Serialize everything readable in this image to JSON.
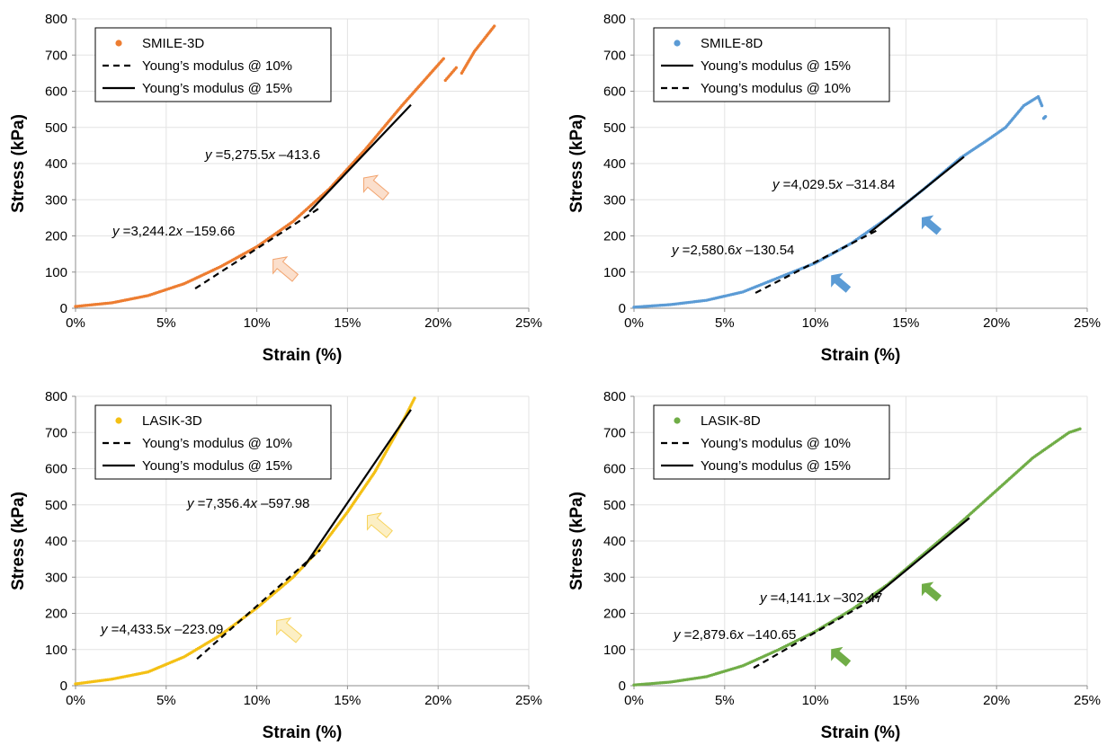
{
  "chart_data": [
    {
      "type": "scatter",
      "color": "#ED7D31",
      "xlabel": "Strain (%)",
      "ylabel": "Stress (kPa)",
      "xlim": [
        0,
        25
      ],
      "ylim": [
        0,
        800
      ],
      "xticks": [
        "0%",
        "5%",
        "10%",
        "15%",
        "20%",
        "25%"
      ],
      "yticks": [
        "0",
        "100",
        "200",
        "300",
        "400",
        "500",
        "600",
        "700",
        "800"
      ],
      "grid": true,
      "legend_position": "top-left",
      "legend": [
        {
          "label": "SMILE-3D",
          "kind": "marker"
        },
        {
          "label": "Young’s modulus @ 10%",
          "kind": "dashed"
        },
        {
          "label": "Young’s modulus @ 15%",
          "kind": "solid"
        }
      ],
      "series": [
        {
          "name": "SMILE-3D",
          "x": [
            0,
            2,
            4,
            6,
            8,
            10,
            12,
            14,
            16,
            18,
            20.3
          ],
          "y": [
            5,
            15,
            35,
            68,
            115,
            170,
            240,
            330,
            440,
            560,
            690
          ]
        },
        {
          "name": "SMILE-3D",
          "x": [
            20.4,
            21.0
          ],
          "y": [
            630,
            665
          ]
        },
        {
          "name": "SMILE-3D",
          "x": [
            21.3,
            22.0,
            23.1
          ],
          "y": [
            650,
            710,
            780
          ]
        }
      ],
      "fit_lines": [
        {
          "label": "Young’s modulus @ 10%",
          "style": "dashed",
          "slope": 3244.2,
          "intercept": -159.66,
          "x_range": [
            6.6,
            13.5
          ]
        },
        {
          "label": "Young’s modulus @ 15%",
          "style": "solid",
          "slope": 5275.5,
          "intercept": -413.6,
          "x_range": [
            12.9,
            18.5
          ]
        }
      ],
      "annotations": [
        {
          "text": "3,244.2",
          "intercept_text": "–159.66",
          "at": [
            10.4,
            130
          ],
          "arrow_at": [
            10.5,
            155
          ]
        },
        {
          "text": "5,275.5",
          "intercept_text": "–413.6",
          "at": [
            15.4,
            390
          ],
          "arrow_at": [
            15.5,
            380
          ]
        }
      ]
    },
    {
      "type": "scatter",
      "color": "#5B9BD5",
      "xlabel": "Strain (%)",
      "ylabel": "Stress (kPa)",
      "xlim": [
        0,
        25
      ],
      "ylim": [
        0,
        800
      ],
      "xticks": [
        "0%",
        "5%",
        "10%",
        "15%",
        "20%",
        "25%"
      ],
      "yticks": [
        "0",
        "100",
        "200",
        "300",
        "400",
        "500",
        "600",
        "700",
        "800"
      ],
      "grid": true,
      "legend_position": "top-left",
      "legend": [
        {
          "label": "SMILE-8D",
          "kind": "marker"
        },
        {
          "label": "Young’s modulus @ 15%",
          "kind": "solid"
        },
        {
          "label": "Young’s modulus @ 10%",
          "kind": "dashed"
        }
      ],
      "series": [
        {
          "name": "SMILE-8D",
          "x": [
            0,
            2,
            4,
            6,
            8,
            10,
            12,
            14,
            16,
            18,
            19.5,
            20.5,
            21.5,
            22.3,
            22.5
          ],
          "y": [
            3,
            10,
            22,
            45,
            85,
            125,
            180,
            250,
            330,
            415,
            465,
            500,
            560,
            585,
            560
          ]
        },
        {
          "name": "SMILE-8D",
          "x": [
            22.6,
            22.7
          ],
          "y": [
            525,
            530
          ]
        }
      ],
      "fit_lines": [
        {
          "label": "Young’s modulus @ 10%",
          "style": "dashed",
          "slope": 2580.6,
          "intercept": -130.54,
          "x_range": [
            6.7,
            13.5
          ]
        },
        {
          "label": "Young’s modulus @ 15%",
          "style": "solid",
          "slope": 4029.5,
          "intercept": -314.84,
          "x_range": [
            13.0,
            18.2
          ]
        }
      ],
      "annotations": [
        {
          "text": "2,580.6",
          "intercept_text": "–130.54",
          "at": [
            10.4,
            120
          ],
          "arrow_at": [
            10.5,
            110
          ]
        },
        {
          "text": "4,029.5",
          "intercept_text": "–314.84",
          "at": [
            15.4,
            280
          ],
          "arrow_at": [
            15.5,
            270
          ]
        }
      ]
    },
    {
      "type": "scatter",
      "color": "#F4C014",
      "xlabel": "Strain (%)",
      "ylabel": "Stress (kPa)",
      "xlim": [
        0,
        25
      ],
      "ylim": [
        0,
        800
      ],
      "xticks": [
        "0%",
        "5%",
        "10%",
        "15%",
        "20%",
        "25%"
      ],
      "yticks": [
        "0",
        "100",
        "200",
        "300",
        "400",
        "500",
        "600",
        "700",
        "800"
      ],
      "grid": true,
      "legend_position": "top-left",
      "legend": [
        {
          "label": "LASIK-3D",
          "kind": "marker"
        },
        {
          "label": "Young’s modulus @ 10%",
          "kind": "dashed"
        },
        {
          "label": "Young’s modulus @ 15%",
          "kind": "solid"
        }
      ],
      "series": [
        {
          "name": "LASIK-3D",
          "x": [
            0,
            2,
            4,
            6,
            8,
            10,
            12,
            13.5,
            15,
            16.5,
            17.5,
            18.2,
            18.7
          ],
          "y": [
            5,
            18,
            38,
            80,
            140,
            215,
            300,
            380,
            480,
            590,
            680,
            745,
            795
          ]
        }
      ],
      "fit_lines": [
        {
          "label": "Young’s modulus @ 10%",
          "style": "dashed",
          "slope": 4433.5,
          "intercept": -223.09,
          "x_range": [
            6.7,
            13.5
          ]
        },
        {
          "label": "Young’s modulus @ 15%",
          "style": "solid",
          "slope": 7356.4,
          "intercept": -597.98,
          "x_range": [
            12.6,
            18.5
          ]
        }
      ],
      "annotations": [
        {
          "text": "4,433.5",
          "intercept_text": "–223.09",
          "at": [
            10.6,
            200
          ],
          "arrow_at": [
            10.7,
            200
          ]
        },
        {
          "text": "7,356.4",
          "intercept_text": "–597.98",
          "at": [
            15.6,
            480
          ],
          "arrow_at": [
            15.7,
            490
          ]
        }
      ]
    },
    {
      "type": "scatter",
      "color": "#70AD47",
      "xlabel": "Strain (%)",
      "ylabel": "Stress (kPa)",
      "xlim": [
        0,
        25
      ],
      "ylim": [
        0,
        800
      ],
      "xticks": [
        "0%",
        "5%",
        "10%",
        "15%",
        "20%",
        "25%"
      ],
      "yticks": [
        "0",
        "100",
        "200",
        "300",
        "400",
        "500",
        "600",
        "700",
        "800"
      ],
      "grid": true,
      "legend_position": "top-left",
      "legend": [
        {
          "label": "LASIK-8D",
          "kind": "marker"
        },
        {
          "label": "Young’s modulus @ 10%",
          "kind": "dashed"
        },
        {
          "label": "Young’s modulus @ 15%",
          "kind": "solid"
        }
      ],
      "series": [
        {
          "name": "LASIK-8D",
          "x": [
            0,
            2,
            4,
            6,
            8,
            10,
            12,
            14,
            16,
            18,
            20,
            22,
            24,
            24.6
          ],
          "y": [
            2,
            10,
            25,
            55,
            100,
            150,
            210,
            280,
            365,
            450,
            540,
            630,
            700,
            710
          ]
        }
      ],
      "fit_lines": [
        {
          "label": "Young’s modulus @ 10%",
          "style": "dashed",
          "slope": 2879.6,
          "intercept": -140.65,
          "x_range": [
            6.6,
            13.5
          ]
        },
        {
          "label": "Young’s modulus @ 15%",
          "style": "solid",
          "slope": 4141.1,
          "intercept": -302.47,
          "x_range": [
            13.0,
            18.5
          ]
        }
      ],
      "annotations": [
        {
          "text": "2,879.6",
          "intercept_text": "–140.65",
          "at": [
            10.4,
            110
          ],
          "arrow_at": [
            10.5,
            120
          ]
        },
        {
          "text": "4,141.1",
          "intercept_text": "–302.47",
          "at": [
            15.4,
            290
          ],
          "arrow_at": [
            15.5,
            300
          ]
        }
      ]
    }
  ],
  "equation_prefix": "y",
  "equation_equals": " =",
  "equation_var": "x",
  "icons": {
    "annotation_arrow": "arrow-icon"
  }
}
